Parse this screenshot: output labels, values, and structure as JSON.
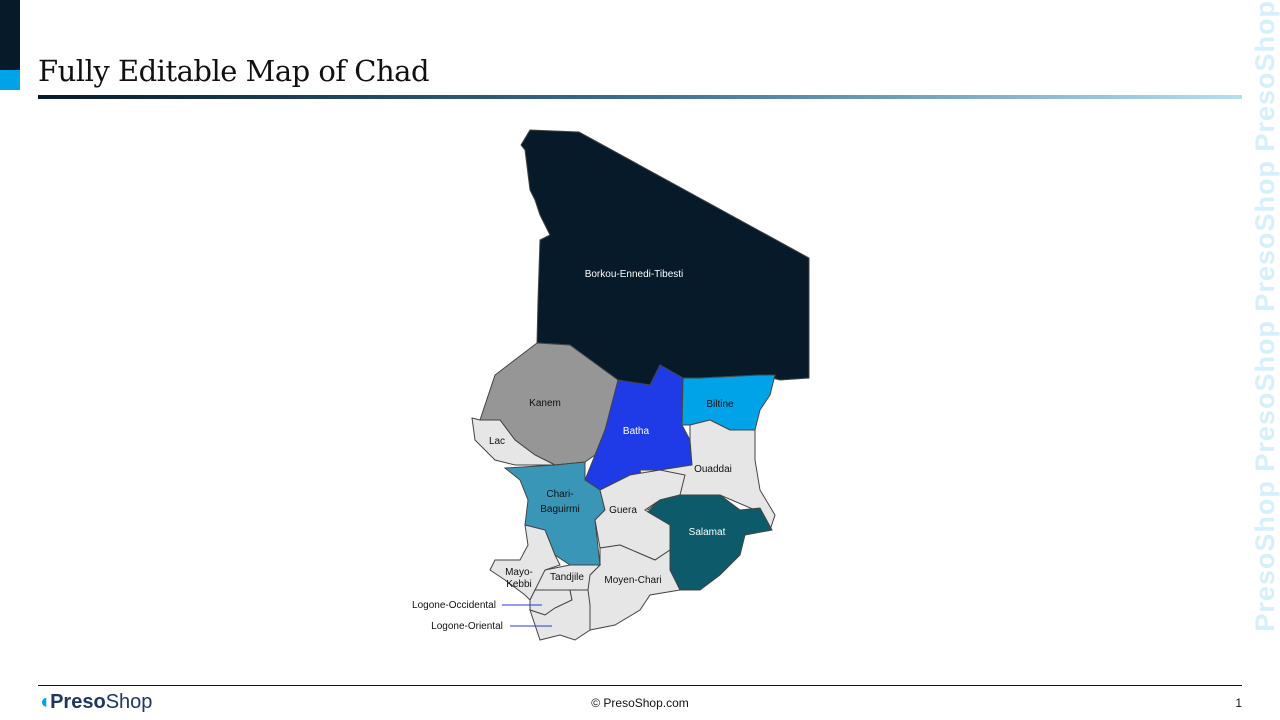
{
  "title": "Fully Editable Map of Chad",
  "watermark": "PresoShop",
  "footer": {
    "logo_bold": "Preso",
    "logo_light": "Shop",
    "copyright": "© PresoShop.com",
    "page": "1"
  },
  "regions": [
    {
      "name": "Borkou-Ennedi-Tibesti",
      "color": "#061a2a",
      "label_color": "#ffffff"
    },
    {
      "name": "Kanem",
      "color": "#969696",
      "label_color": "#111111"
    },
    {
      "name": "Batha",
      "color": "#1f3be8",
      "label_color": "#ffffff"
    },
    {
      "name": "Biltine",
      "color": "#00a3e8",
      "label_color": "#111111"
    },
    {
      "name": "Lac",
      "color": "#e6e6e6",
      "label_color": "#111111"
    },
    {
      "name": "Chari-Baguirmi",
      "color": "#3a96b6",
      "label_color": "#111111"
    },
    {
      "name": "Ouaddai",
      "color": "#e6e6e6",
      "label_color": "#111111"
    },
    {
      "name": "Guera",
      "color": "#e6e6e6",
      "label_color": "#111111"
    },
    {
      "name": "Salamat",
      "color": "#0d5a6a",
      "label_color": "#ffffff"
    },
    {
      "name": "Moyen-Chari",
      "color": "#e6e6e6",
      "label_color": "#111111"
    },
    {
      "name": "Tandjile",
      "color": "#e6e6e6",
      "label_color": "#111111"
    },
    {
      "name": "Mayo-Kebbi",
      "color": "#e6e6e6",
      "label_color": "#111111"
    },
    {
      "name": "Logone-Occidental",
      "color": "#e6e6e6",
      "label_color": "#111111"
    },
    {
      "name": "Logone-Oriental",
      "color": "#e6e6e6",
      "label_color": "#111111"
    }
  ],
  "leader_color": "#1f3be8"
}
